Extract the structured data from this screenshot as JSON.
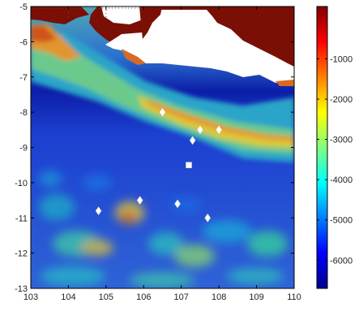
{
  "map": {
    "x_ticks": [
      "103",
      "104",
      "105",
      "106",
      "107",
      "108",
      "109",
      "110"
    ],
    "y_ticks": [
      "-5",
      "-6",
      "-7",
      "-8",
      "-9",
      "-10",
      "-11",
      "-12",
      "-13"
    ],
    "x_range": [
      103,
      110
    ],
    "y_range": [
      -13,
      -5
    ],
    "colorbar_ticks": [
      "-1000",
      "-2000",
      "-3000",
      "-4000",
      "-5000",
      "-6000"
    ],
    "colorbar_range": [
      -6700,
      300
    ],
    "colors": {
      "land": "#7a0f05",
      "frame": "#000000",
      "marker": "#ffffff"
    },
    "markers": [
      {
        "shape": "diamond",
        "lon": 106.5,
        "lat": -8.0
      },
      {
        "shape": "diamond",
        "lon": 107.5,
        "lat": -8.5
      },
      {
        "shape": "diamond",
        "lon": 108.0,
        "lat": -8.5
      },
      {
        "shape": "diamond",
        "lon": 107.3,
        "lat": -8.8
      },
      {
        "shape": "square",
        "lon": 107.2,
        "lat": -9.5
      },
      {
        "shape": "diamond",
        "lon": 105.9,
        "lat": -10.5
      },
      {
        "shape": "diamond",
        "lon": 106.9,
        "lat": -10.6
      },
      {
        "shape": "diamond",
        "lon": 104.8,
        "lat": -10.8
      },
      {
        "shape": "diamond",
        "lon": 107.7,
        "lat": -11.0
      }
    ]
  }
}
